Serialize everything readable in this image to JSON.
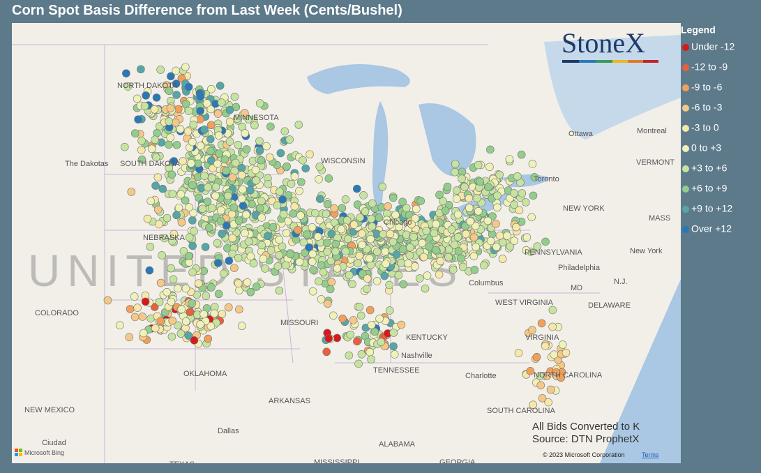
{
  "title": "Corn Spot Basis Difference from Last Week (Cents/Bushel)",
  "legend": {
    "title": "Legend",
    "items": [
      {
        "label": "Under -12",
        "color": "#d7191c"
      },
      {
        "label": "-12 to -9",
        "color": "#e8603c"
      },
      {
        "label": "-9 to -6",
        "color": "#f0a05a"
      },
      {
        "label": "-6 to -3",
        "color": "#f5c888"
      },
      {
        "label": "-3 to 0",
        "color": "#f6e8a8"
      },
      {
        "label": "0 to +3",
        "color": "#eef2b8"
      },
      {
        "label": "+3 to +6",
        "color": "#c6e4a0"
      },
      {
        "label": "+6 to +9",
        "color": "#93cd8b"
      },
      {
        "label": "+9 to +12",
        "color": "#56a6a6"
      },
      {
        "label": "Over +12",
        "color": "#2a78b6"
      }
    ]
  },
  "logo": "StoneX",
  "watermark": "UNITED STATES",
  "map_labels": [
    "NORTH DAKOTA",
    "MINNESOTA",
    "The Dakotas",
    "SOUTH DAKOTA",
    "WISCONSIN",
    "NEBRASKA",
    "COLORADO",
    "MISSOURI",
    "OKLAHOMA",
    "ARKANSAS",
    "NEW MEXICO",
    "Ciudad",
    "Dallas",
    "TEXAS",
    "MISSISSIPPI",
    "ALABAMA",
    "GEORGIA",
    "TENNESSEE",
    "Nashville",
    "KENTUCKY",
    "Chicago",
    "Columbus",
    "WEST VIRGINIA",
    "VIRGINIA",
    "Charlotte",
    "NORTH CAROLINA",
    "SOUTH CAROLINA",
    "PENNSYLVANIA",
    "Philadelphia",
    "NEW YORK",
    "New York",
    "Toronto",
    "Ottawa",
    "Montreal",
    "VERMONT",
    "DELAWARE",
    "MD",
    "N.J.",
    "MASS"
  ],
  "notes": [
    "All Bids Converted to K",
    "Source: DTN ProphetX"
  ],
  "attribution": {
    "bing": "Microsoft Bing",
    "copyright": "© 2023 Microsoft Corporation",
    "terms": "Terms"
  }
}
